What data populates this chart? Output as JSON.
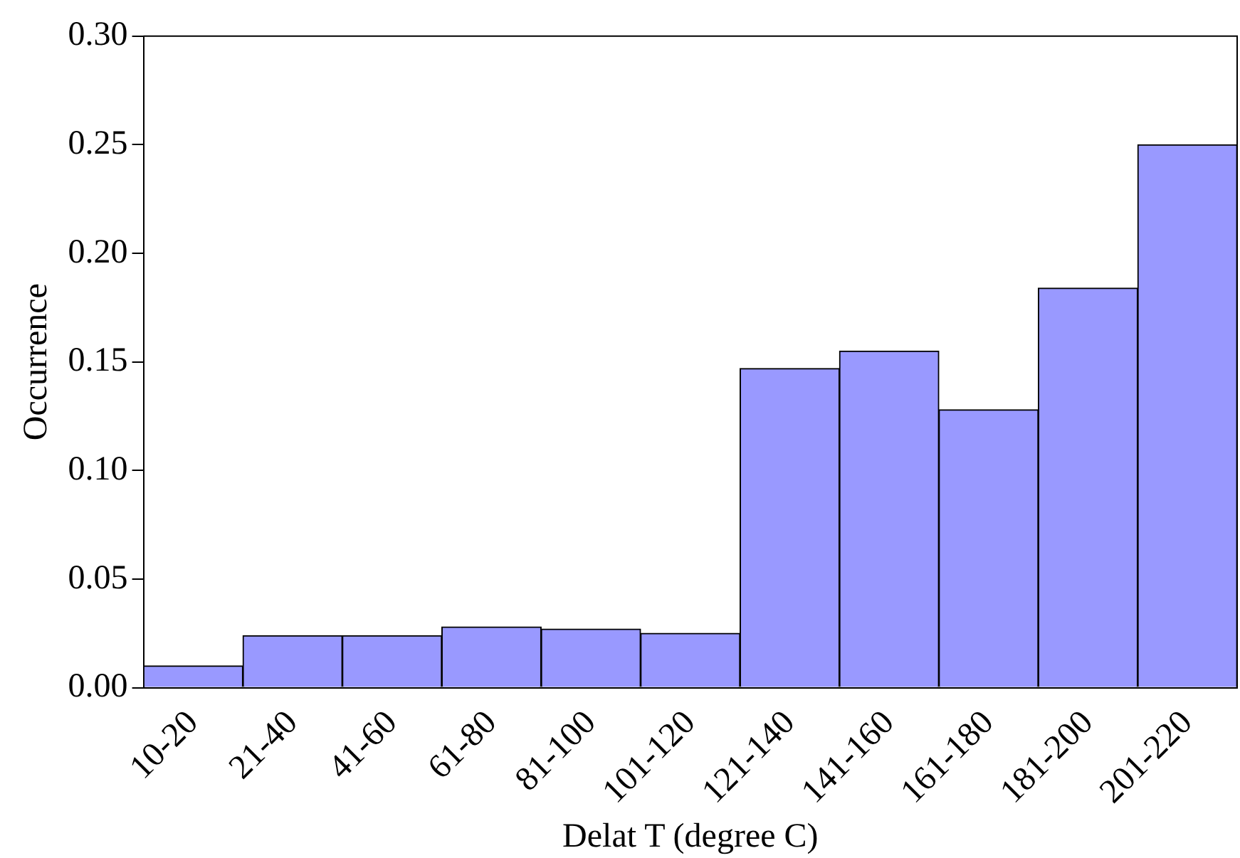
{
  "chart_data": {
    "type": "bar",
    "xlabel": "Delat T (degree C)",
    "ylabel": "Occurrence",
    "categories": [
      "10-20",
      "21-40",
      "41-60",
      "61-80",
      "81-100",
      "101-120",
      "121-140",
      "141-160",
      "161-180",
      "181-200",
      "201-220"
    ],
    "values": [
      0.01,
      0.024,
      0.024,
      0.028,
      0.027,
      0.025,
      0.147,
      0.155,
      0.128,
      0.184,
      0.25
    ],
    "color": "#9999ff",
    "ylim": [
      0,
      0.3
    ],
    "yticks": [
      {
        "value": 0,
        "label": "0.00"
      },
      {
        "value": 0.05,
        "label": "0.05"
      },
      {
        "value": 0.1,
        "label": "0.10"
      },
      {
        "value": 0.15,
        "label": "0.15"
      },
      {
        "value": 0.2,
        "label": "0.20"
      },
      {
        "value": 0.25,
        "label": "0.25"
      },
      {
        "value": 0.3,
        "label": "0.30"
      }
    ],
    "grid": false,
    "legend": false
  }
}
